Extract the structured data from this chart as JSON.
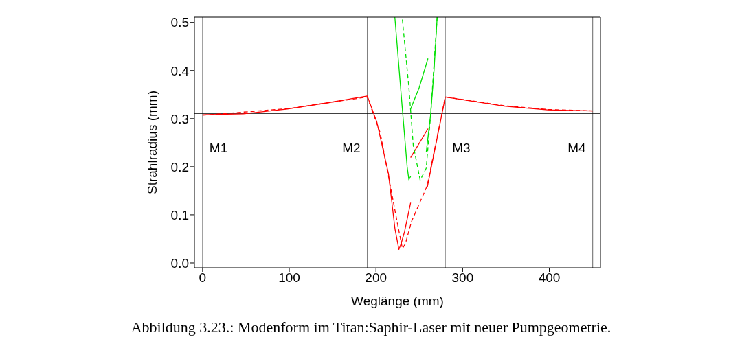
{
  "chart_data": {
    "type": "line",
    "xlabel": "Weglänge (mm)",
    "ylabel": "Strahlradius (mm)",
    "xlim": [
      -9.4,
      459
    ],
    "ylim": [
      -0.01,
      0.511
    ],
    "xticks": [
      0,
      100,
      200,
      300,
      400
    ],
    "yticks": [
      {
        "value": 0,
        "label": "0.0"
      },
      {
        "value": 0.1,
        "label": "0.1"
      },
      {
        "value": 0.2,
        "label": "0.2"
      },
      {
        "value": 0.3,
        "label": "0.3"
      },
      {
        "value": 0.4,
        "label": "0.4"
      },
      {
        "value": 0.5,
        "label": "0.5"
      }
    ],
    "marker": "none",
    "series": [
      {
        "color": "#ff0000",
        "line_style": "solid",
        "x": [
          0,
          47,
          97.6,
          148,
          190,
          201,
          214.5,
          222,
          226.5,
          229,
          233,
          240
        ],
        "values": [
          0.308,
          0.31,
          0.32,
          0.334,
          0.347,
          0.293,
          0.185,
          0.07,
          0.028,
          0.04,
          0.065,
          0.125
        ]
      },
      {
        "color": "#ff0000",
        "line_style": "solid",
        "x": [
          240,
          260
        ],
        "values": [
          0.219,
          0.279
        ]
      },
      {
        "color": "#ff0000",
        "line_style": "solid",
        "x": [
          259.3,
          280,
          348,
          398,
          450
        ],
        "values": [
          0.158,
          0.345,
          0.326,
          0.318,
          0.316
        ]
      },
      {
        "color": "#ff0000",
        "line_style": "dashed",
        "x": [
          0,
          100,
          190,
          205,
          225,
          230.5,
          234,
          241,
          259,
          280,
          348,
          398,
          450
        ],
        "values": [
          0.307,
          0.321,
          0.345,
          0.27,
          0.08,
          0.03,
          0.04,
          0.086,
          0.16,
          0.345,
          0.327,
          0.319,
          0.316
        ]
      },
      {
        "color": "#00e000",
        "line_style": "solid",
        "x": [
          221.8,
          230,
          236,
          238,
          240
        ],
        "values": [
          0.511,
          0.33,
          0.2,
          0.173,
          0.18
        ]
      },
      {
        "color": "#00e000",
        "line_style": "solid",
        "x": [
          240,
          250,
          260
        ],
        "values": [
          0.32,
          0.365,
          0.425
        ]
      },
      {
        "color": "#00e000",
        "line_style": "solid",
        "x": [
          258,
          263,
          267,
          270.6
        ],
        "values": [
          0.23,
          0.307,
          0.4,
          0.511
        ]
      },
      {
        "color": "#00e000",
        "line_style": "dashed",
        "x": [
          230.5,
          238,
          243,
          251,
          258,
          263,
          270.6
        ],
        "values": [
          0.506,
          0.365,
          0.245,
          0.172,
          0.197,
          0.305,
          0.511
        ]
      }
    ],
    "ref_lines": [
      {
        "axis": "x",
        "value": 0,
        "label": "M1",
        "color": "#808080"
      },
      {
        "axis": "x",
        "value": 190,
        "label": "M2",
        "color": "#808080"
      },
      {
        "axis": "x",
        "value": 280,
        "label": "M3",
        "color": "#808080"
      },
      {
        "axis": "x",
        "value": 450,
        "label": "M4",
        "color": "#808080"
      },
      {
        "axis": "y",
        "value": 0.311,
        "color": "#000000"
      }
    ],
    "annotations": [
      "Abbildung 3.23.: Modenform im Titan:Saphir-Laser mit neuer Pumpgeometrie."
    ]
  }
}
